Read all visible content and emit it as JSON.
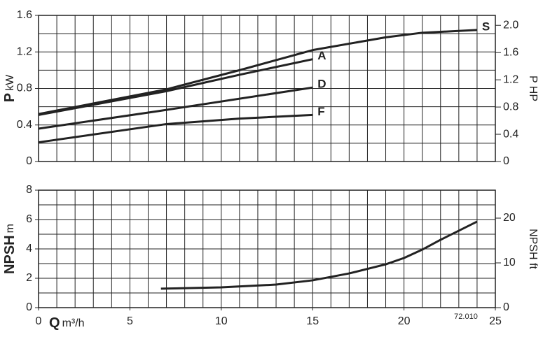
{
  "chart_data": [
    {
      "type": "line",
      "y_label": {
        "symbol": "P",
        "unit": "kW"
      },
      "y2_label": "P HP",
      "xlim": [
        0,
        25
      ],
      "ylim": [
        0,
        1.6
      ],
      "y2lim": [
        0,
        2.146
      ],
      "yticks": [
        0,
        0.4,
        0.8,
        1.2,
        1.6
      ],
      "y2ticks": [
        0,
        0.4,
        0.8,
        1.2,
        1.6,
        {
          "value": 2,
          "label": "2.0"
        }
      ],
      "xgrid": [
        0,
        1,
        2,
        3,
        4,
        5,
        6,
        7,
        8,
        9,
        10,
        11,
        12,
        13,
        14,
        15,
        16,
        17,
        18,
        19,
        20,
        21,
        22,
        23,
        24,
        25
      ],
      "ygrid": [
        0,
        0.2,
        0.4,
        0.6,
        0.8,
        1.0,
        1.2,
        1.4,
        1.6
      ],
      "color": "#222222",
      "series": [
        {
          "name": "S",
          "x": [
            0,
            7,
            11,
            15,
            19,
            21,
            24
          ],
          "values": [
            0.52,
            0.79,
            1.0,
            1.22,
            1.36,
            1.41,
            1.44
          ]
        },
        {
          "name": "A",
          "x": [
            0,
            7,
            11,
            15
          ],
          "values": [
            0.51,
            0.77,
            0.95,
            1.12
          ]
        },
        {
          "name": "D",
          "x": [
            0,
            6.5,
            15
          ],
          "values": [
            0.36,
            0.55,
            0.81
          ]
        },
        {
          "name": "F",
          "x": [
            0,
            7,
            11,
            15
          ],
          "values": [
            0.21,
            0.41,
            0.47,
            0.51
          ]
        }
      ]
    },
    {
      "type": "line",
      "y_label": {
        "symbol": "NPSH",
        "unit": "m"
      },
      "y2_label": "NPSH ft",
      "x_label": {
        "symbol": "Q",
        "unit": "m³/h"
      },
      "annotation": "72.010",
      "xlim": [
        0,
        25
      ],
      "ylim": [
        0,
        8
      ],
      "y2lim": [
        0,
        26.25
      ],
      "xticks": [
        0,
        5,
        10,
        15,
        20,
        25
      ],
      "yticks": [
        0,
        2,
        4,
        6,
        8
      ],
      "y2ticks": [
        0,
        10,
        20
      ],
      "xgrid": [
        0,
        1,
        2,
        3,
        4,
        5,
        6,
        7,
        8,
        9,
        10,
        11,
        12,
        13,
        14,
        15,
        16,
        17,
        18,
        19,
        20,
        21,
        22,
        23,
        24,
        25
      ],
      "ygrid": [
        0,
        1,
        2,
        3,
        4,
        5,
        6,
        7,
        8
      ],
      "color": "#222222",
      "series": [
        {
          "x": [
            6.7,
            10,
            13,
            15,
            17,
            19,
            20,
            21,
            22,
            24
          ],
          "values": [
            1.29,
            1.38,
            1.57,
            1.86,
            2.33,
            2.95,
            3.38,
            3.95,
            4.62,
            5.86
          ]
        }
      ]
    }
  ]
}
